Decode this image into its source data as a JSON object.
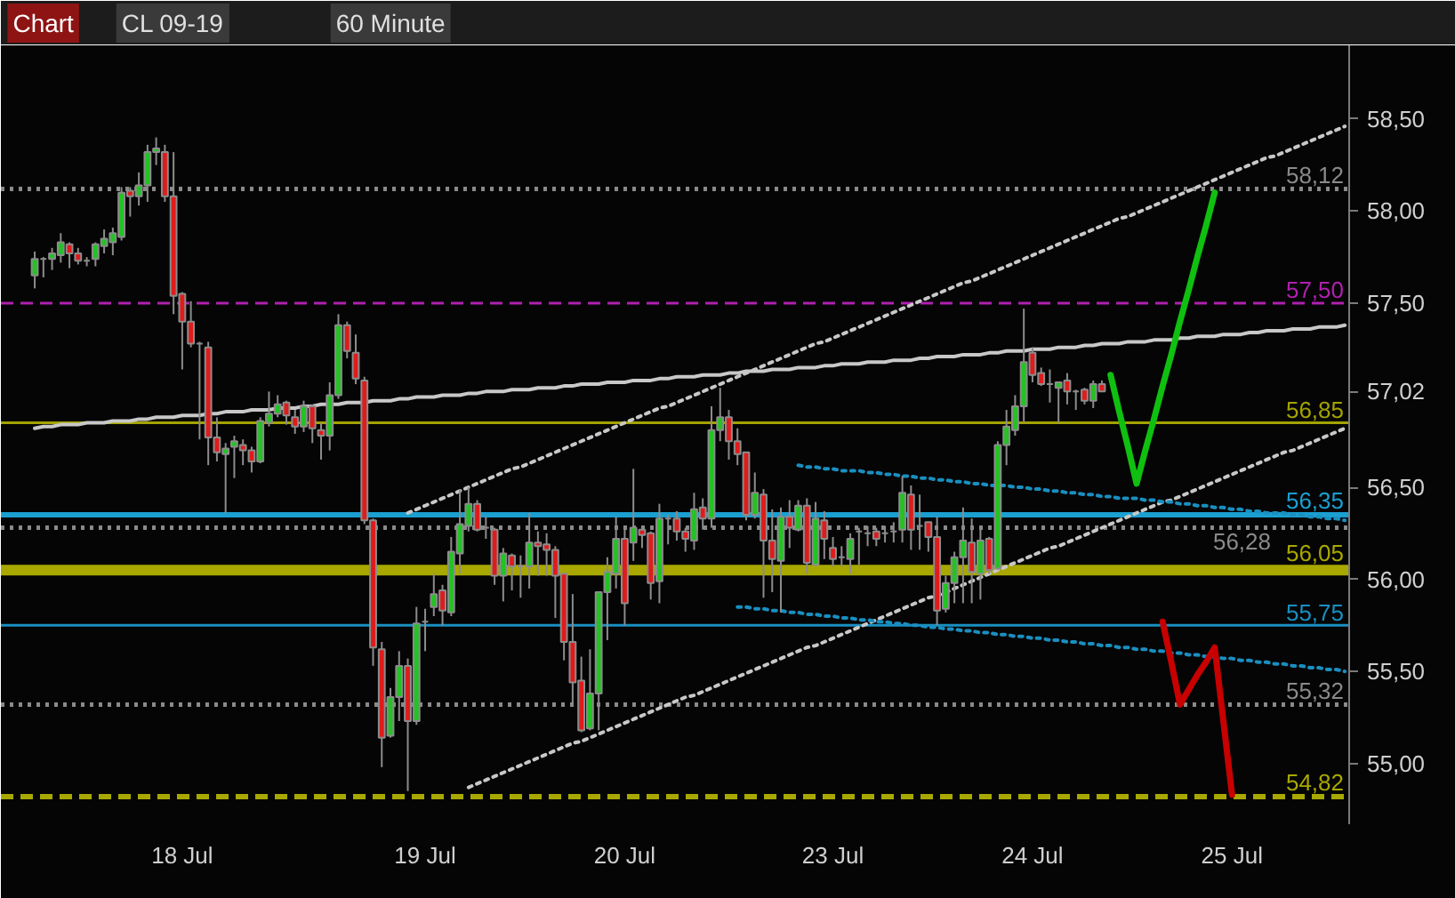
{
  "chart_data": {
    "type": "candlestick",
    "title": "CL 09-19",
    "subtitle": "60 Minute",
    "annotations": [
      "Chart"
    ],
    "categories": [
      null,
      null,
      null,
      null,
      null,
      null,
      null,
      null,
      null,
      null,
      null,
      null,
      null,
      null,
      null,
      null,
      null,
      "18 Jul",
      null,
      null,
      null,
      null,
      null,
      null,
      null,
      null,
      null,
      null,
      null,
      null,
      null,
      null,
      null,
      null,
      null,
      null,
      null,
      null,
      null,
      null,
      null,
      null,
      null,
      null,
      null,
      "19 Jul",
      null,
      null,
      null,
      null,
      null,
      null,
      null,
      null,
      null,
      null,
      null,
      null,
      null,
      null,
      null,
      null,
      null,
      null,
      null,
      null,
      null,
      null,
      "20 Jul",
      null,
      null,
      null,
      null,
      null,
      null,
      null,
      null,
      null,
      null,
      null,
      null,
      null,
      null,
      null,
      null,
      null,
      null,
      null,
      null,
      null,
      null,
      null,
      "23 Jul",
      null,
      null,
      null,
      null,
      null,
      null,
      null,
      null,
      null,
      null,
      null,
      null,
      null,
      null,
      null,
      null,
      null,
      null,
      null,
      null,
      null,
      null,
      "24 Jul",
      null,
      null,
      null,
      null,
      null,
      null,
      null,
      null,
      null,
      null,
      null,
      null,
      null,
      null,
      null,
      null,
      null,
      null,
      null,
      null,
      null,
      null,
      "25 Jul",
      null,
      null,
      null,
      null,
      null,
      null,
      null,
      null,
      null,
      null,
      null,
      null,
      null
    ],
    "ohlc": [
      [
        57.65,
        57.78,
        57.58,
        57.74
      ],
      [
        57.74,
        57.75,
        57.64,
        57.74
      ],
      [
        57.74,
        57.8,
        57.68,
        57.77
      ],
      [
        57.76,
        57.88,
        57.72,
        57.83
      ],
      [
        57.82,
        57.83,
        57.69,
        57.77
      ],
      [
        57.77,
        57.8,
        57.71,
        57.73
      ],
      [
        57.73,
        57.75,
        57.7,
        57.73
      ],
      [
        57.74,
        57.83,
        57.7,
        57.82
      ],
      [
        57.81,
        57.9,
        57.77,
        57.85
      ],
      [
        57.83,
        57.91,
        57.76,
        57.88
      ],
      [
        57.86,
        58.13,
        57.84,
        58.1
      ],
      [
        58.11,
        58.13,
        57.97,
        58.08
      ],
      [
        58.08,
        58.21,
        58.03,
        58.14
      ],
      [
        58.14,
        58.36,
        58.05,
        58.32
      ],
      [
        58.32,
        58.4,
        58.25,
        58.34
      ],
      [
        58.32,
        58.36,
        58.05,
        58.08
      ],
      [
        58.08,
        58.32,
        57.44,
        57.54
      ],
      [
        57.55,
        57.56,
        57.14,
        57.4
      ],
      [
        57.4,
        57.51,
        57.26,
        57.28
      ],
      [
        57.28,
        57.29,
        56.76,
        57.28
      ],
      [
        57.26,
        57.29,
        56.62,
        56.77
      ],
      [
        56.77,
        56.88,
        56.64,
        56.69
      ],
      [
        56.68,
        56.74,
        56.36,
        56.71
      ],
      [
        56.72,
        56.78,
        56.55,
        56.75
      ],
      [
        56.73,
        56.76,
        56.62,
        56.7
      ],
      [
        56.7,
        56.72,
        56.58,
        56.64
      ],
      [
        56.64,
        56.88,
        56.63,
        56.86
      ],
      [
        56.85,
        57.02,
        56.83,
        56.9
      ],
      [
        56.9,
        57.0,
        56.88,
        56.95
      ],
      [
        56.96,
        56.97,
        56.84,
        56.89
      ],
      [
        56.88,
        56.92,
        56.79,
        56.83
      ],
      [
        56.83,
        56.97,
        56.8,
        56.94
      ],
      [
        56.94,
        56.95,
        56.74,
        56.82
      ],
      [
        56.81,
        56.85,
        56.65,
        56.78
      ],
      [
        56.78,
        57.07,
        56.7,
        57.0
      ],
      [
        57.0,
        57.44,
        56.98,
        57.38
      ],
      [
        57.38,
        57.4,
        57.2,
        57.24
      ],
      [
        57.23,
        57.33,
        57.06,
        57.09
      ],
      [
        57.08,
        57.1,
        56.3,
        56.32
      ],
      [
        56.32,
        56.33,
        55.53,
        55.63
      ],
      [
        55.62,
        55.66,
        54.98,
        55.14
      ],
      [
        55.15,
        55.41,
        55.14,
        55.36
      ],
      [
        55.36,
        55.61,
        55.23,
        55.53
      ],
      [
        55.53,
        55.57,
        54.85,
        55.23
      ],
      [
        55.23,
        55.85,
        55.21,
        55.76
      ],
      [
        55.77,
        55.84,
        55.61,
        55.77
      ],
      [
        55.85,
        56.03,
        55.8,
        55.92
      ],
      [
        55.94,
        55.97,
        55.75,
        55.83
      ],
      [
        55.82,
        56.23,
        55.8,
        56.15
      ],
      [
        56.14,
        56.49,
        56.03,
        56.3
      ],
      [
        56.29,
        56.5,
        56.26,
        56.41
      ],
      [
        56.41,
        56.43,
        56.26,
        56.27
      ],
      [
        56.28,
        56.34,
        56.22,
        56.28
      ],
      [
        56.27,
        56.28,
        55.97,
        56.02
      ],
      [
        56.02,
        56.17,
        55.88,
        56.14
      ],
      [
        56.13,
        56.14,
        55.94,
        56.07
      ],
      [
        56.07,
        56.13,
        55.9,
        56.07
      ],
      [
        56.07,
        56.36,
        55.95,
        56.2
      ],
      [
        56.2,
        56.26,
        56.02,
        56.18
      ],
      [
        56.19,
        56.25,
        56.02,
        56.16
      ],
      [
        56.16,
        56.18,
        55.79,
        56.02
      ],
      [
        56.03,
        56.03,
        55.56,
        55.66
      ],
      [
        55.66,
        55.92,
        55.31,
        55.44
      ],
      [
        55.45,
        55.58,
        55.17,
        55.18
      ],
      [
        55.19,
        55.62,
        55.18,
        55.38
      ],
      [
        55.38,
        55.93,
        55.18,
        55.93
      ],
      [
        55.93,
        56.12,
        55.67,
        56.04
      ],
      [
        56.03,
        56.34,
        55.95,
        56.22
      ],
      [
        56.22,
        56.29,
        55.75,
        55.87
      ],
      [
        56.2,
        56.6,
        56.1,
        56.28
      ],
      [
        56.27,
        56.29,
        56.17,
        56.24
      ],
      [
        56.25,
        56.26,
        55.89,
        55.98
      ],
      [
        55.99,
        56.41,
        55.87,
        56.33
      ],
      [
        56.33,
        56.35,
        56.19,
        56.33
      ],
      [
        56.33,
        56.37,
        56.21,
        56.26
      ],
      [
        56.26,
        56.28,
        56.15,
        56.22
      ],
      [
        56.21,
        56.47,
        56.16,
        56.38
      ],
      [
        56.39,
        56.44,
        56.27,
        56.33
      ],
      [
        56.33,
        56.94,
        56.28,
        56.81
      ],
      [
        56.81,
        57.04,
        56.75,
        56.88
      ],
      [
        56.88,
        56.92,
        56.65,
        56.75
      ],
      [
        56.75,
        56.82,
        56.62,
        56.68
      ],
      [
        56.69,
        56.69,
        56.32,
        56.35
      ],
      [
        56.35,
        56.58,
        56.33,
        56.47
      ],
      [
        56.46,
        56.49,
        55.9,
        56.21
      ],
      [
        56.21,
        56.38,
        55.93,
        56.11
      ],
      [
        56.1,
        56.39,
        55.82,
        56.34
      ],
      [
        56.34,
        56.43,
        56.17,
        56.28
      ],
      [
        56.27,
        56.43,
        56.26,
        56.4
      ],
      [
        56.4,
        56.44,
        56.03,
        56.09
      ],
      [
        56.08,
        56.42,
        56.07,
        56.33
      ],
      [
        56.32,
        56.37,
        56.11,
        56.22
      ],
      [
        56.17,
        56.23,
        56.07,
        56.11
      ],
      [
        56.12,
        56.18,
        56.07,
        56.12
      ],
      [
        56.11,
        56.25,
        56.03,
        56.22
      ],
      [
        56.26,
        56.28,
        56.08,
        56.26
      ],
      [
        56.25,
        56.29,
        56.18,
        56.25
      ],
      [
        56.26,
        56.28,
        56.18,
        56.22
      ],
      [
        56.25,
        56.29,
        56.2,
        56.25
      ],
      [
        56.26,
        56.31,
        56.2,
        56.26
      ],
      [
        56.27,
        56.56,
        56.2,
        56.47
      ],
      [
        56.46,
        56.51,
        56.16,
        56.27
      ],
      [
        56.29,
        56.46,
        56.16,
        56.29
      ],
      [
        56.31,
        56.31,
        56.15,
        56.23
      ],
      [
        56.23,
        56.34,
        55.75,
        55.83
      ],
      [
        55.84,
        56.02,
        55.82,
        55.98
      ],
      [
        55.98,
        56.15,
        55.87,
        56.12
      ],
      [
        56.12,
        56.39,
        55.87,
        56.21
      ],
      [
        56.2,
        56.33,
        55.87,
        56.04
      ],
      [
        56.03,
        56.28,
        55.89,
        56.21
      ],
      [
        56.22,
        56.23,
        56.03,
        56.05
      ],
      [
        56.06,
        56.75,
        56.05,
        56.73
      ],
      [
        56.73,
        56.92,
        56.62,
        56.83
      ],
      [
        56.81,
        57.0,
        56.78,
        56.94
      ],
      [
        56.94,
        57.47,
        56.85,
        57.18
      ],
      [
        57.23,
        57.26,
        57.07,
        57.11
      ],
      [
        57.12,
        57.15,
        57.05,
        57.06
      ],
      [
        57.06,
        57.14,
        56.96,
        57.06
      ],
      [
        57.04,
        57.07,
        56.85,
        57.07
      ],
      [
        57.08,
        57.12,
        56.95,
        57.02
      ],
      [
        57.02,
        57.03,
        56.92,
        57.02
      ],
      [
        57.03,
        57.04,
        56.95,
        56.97
      ],
      [
        56.97,
        57.08,
        56.93,
        57.06
      ],
      [
        57.06,
        57.08,
        57.02,
        57.02
      ],
      null,
      null,
      null,
      null,
      null,
      null,
      null,
      null,
      null,
      null,
      null,
      null,
      null,
      null,
      null,
      null,
      null,
      null,
      null,
      null,
      null,
      null,
      null,
      null,
      null,
      null,
      null,
      null
    ],
    "colors": [
      "#22c322",
      "#9a9a9a",
      "#22c322",
      "#22c322",
      "#e01b1b",
      "#e01b1b",
      "#9a9a9a",
      "#22c322",
      "#22c322",
      "#22c322",
      "#22c322",
      "#e01b1b",
      "#22c322",
      "#22c322",
      "#22c322",
      "#e01b1b",
      "#e01b1b",
      "#e01b1b",
      "#e01b1b",
      "#9a9a9a",
      "#e01b1b",
      "#e01b1b",
      "#22c322",
      "#22c322",
      "#e01b1b",
      "#e01b1b",
      "#22c322",
      "#22c322",
      "#22c322",
      "#e01b1b",
      "#e01b1b",
      "#22c322",
      "#e01b1b",
      "#e01b1b",
      "#22c322",
      "#22c322",
      "#e01b1b",
      "#e01b1b",
      "#e01b1b",
      "#e01b1b",
      "#e01b1b",
      "#22c322",
      "#22c322",
      "#e01b1b",
      "#22c322",
      "#9a9a9a",
      "#22c322",
      "#e01b1b",
      "#22c322",
      "#22c322",
      "#22c322",
      "#e01b1b",
      "#9a9a9a",
      "#e01b1b",
      "#22c322",
      "#e01b1b",
      "#9a9a9a",
      "#22c322",
      "#e01b1b",
      "#e01b1b",
      "#e01b1b",
      "#e01b1b",
      "#e01b1b",
      "#e01b1b",
      "#22c322",
      "#22c322",
      "#22c322",
      "#22c322",
      "#e01b1b",
      "#22c322",
      "#e01b1b",
      "#e01b1b",
      "#22c322",
      "#9a9a9a",
      "#e01b1b",
      "#e01b1b",
      "#22c322",
      "#e01b1b",
      "#22c322",
      "#22c322",
      "#e01b1b",
      "#e01b1b",
      "#e01b1b",
      "#22c322",
      "#e01b1b",
      "#e01b1b",
      "#22c322",
      "#e01b1b",
      "#22c322",
      "#e01b1b",
      "#22c322",
      "#e01b1b",
      "#e01b1b",
      "#9a9a9a",
      "#22c322",
      "#9a9a9a",
      "#9a9a9a",
      "#e01b1b",
      "#9a9a9a",
      "#9a9a9a",
      "#22c322",
      "#e01b1b",
      "#9a9a9a",
      "#e01b1b",
      "#e01b1b",
      "#22c322",
      "#22c322",
      "#22c322",
      "#e01b1b",
      "#22c322",
      "#e01b1b",
      "#22c322",
      "#22c322",
      "#22c322",
      "#22c322",
      "#e01b1b",
      "#e01b1b",
      "#9a9a9a",
      "#22c322",
      "#e01b1b",
      "#9a9a9a",
      "#e01b1b",
      "#22c322",
      "#e01b1b",
      null,
      null,
      null,
      null,
      null,
      null,
      null,
      null,
      null,
      null,
      null,
      null,
      null,
      null,
      null,
      null,
      null,
      null,
      null,
      null,
      null,
      null,
      null,
      null,
      null,
      null,
      null,
      null
    ],
    "ylim": [
      54.67,
      58.9
    ],
    "yticks": [
      {
        "value": 55,
        "label": "55,00"
      },
      {
        "value": 55.5,
        "label": "55,50"
      },
      {
        "value": 56,
        "label": "56,00"
      },
      {
        "value": 56.5,
        "label": "56,50"
      },
      {
        "value": 57.02,
        "label": "57,02"
      },
      {
        "value": 57.5,
        "label": "57,50"
      },
      {
        "value": 58,
        "label": "58,00"
      },
      {
        "value": 58.5,
        "label": "58,50"
      }
    ],
    "grid": false,
    "ref_lines": [
      {
        "axis": "y",
        "value": 58.12,
        "label": "58,12",
        "color": "#8a8a8a",
        "line_style": "dotted"
      },
      {
        "axis": "y",
        "value": 57.5,
        "label": "57,50",
        "color": "#b020b0",
        "line_style": "dashed"
      },
      {
        "axis": "y",
        "value": 56.85,
        "label": "56,85",
        "color": "#a3a300",
        "line_style": "solid"
      },
      {
        "axis": "y",
        "value": 56.35,
        "label": "56,35",
        "color": "#1a9fd0",
        "line_style": "solid"
      },
      {
        "axis": "y",
        "value": 56.28,
        "label": "56,28",
        "color": "#8a8a8a",
        "line_style": "dotted"
      },
      {
        "axis": "y",
        "value": 56.05,
        "label": "56,05",
        "color": "#a8a800",
        "line_style": "solid"
      },
      {
        "axis": "y",
        "value": 55.75,
        "label": "55,75",
        "color": "#1a8fc0",
        "line_style": "solid"
      },
      {
        "axis": "y",
        "value": 55.32,
        "label": "55,32",
        "color": "#8a8a8a",
        "line_style": "dotted"
      },
      {
        "axis": "y",
        "value": 54.82,
        "label": "54,82",
        "color": "#a8a800",
        "line_style": "dashed"
      }
    ],
    "series": [
      {
        "type": "line",
        "color": "#c8c8c8",
        "line_style": "dotted",
        "values": [
          null,
          null,
          null,
          null,
          null,
          null,
          null,
          null,
          null,
          null,
          null,
          null,
          null,
          null,
          null,
          null,
          null,
          null,
          null,
          null,
          null,
          null,
          null,
          null,
          null,
          null,
          null,
          null,
          null,
          null,
          null,
          null,
          null,
          null,
          null,
          null,
          null,
          null,
          null,
          null,
          null,
          null,
          null,
          56.36,
          56.38,
          56.4,
          56.42,
          56.44,
          56.46,
          56.48,
          56.5,
          56.52,
          56.54,
          56.56,
          56.58,
          56.6,
          56.61,
          56.63,
          56.65,
          56.67,
          56.69,
          56.71,
          56.73,
          56.75,
          56.77,
          56.79,
          56.81,
          56.83,
          56.85,
          56.87,
          56.89,
          56.91,
          56.93,
          56.94,
          56.96,
          56.98,
          57.0,
          57.02,
          57.04,
          57.06,
          57.08,
          57.1,
          57.12,
          57.14,
          57.16,
          57.18,
          57.2,
          57.22,
          57.24,
          57.26,
          57.28,
          57.29,
          57.31,
          57.33,
          57.35,
          57.37,
          57.39,
          57.41,
          57.43,
          57.45,
          57.47,
          57.49,
          57.51,
          57.53,
          57.55,
          57.57,
          57.59,
          57.61,
          57.62,
          57.64,
          57.66,
          57.68,
          57.7,
          57.72,
          57.74,
          57.76,
          57.78,
          57.8,
          57.82,
          57.84,
          57.86,
          57.88,
          57.9,
          57.92,
          57.94,
          57.96,
          57.97,
          57.99,
          58.01,
          58.03,
          58.05,
          58.07,
          58.09,
          58.11,
          58.13,
          58.15,
          58.17,
          58.19,
          58.21,
          58.23,
          58.25,
          58.27,
          58.29,
          58.3,
          58.32,
          58.34,
          58.36,
          58.38,
          58.4,
          58.42,
          58.44,
          58.46
        ]
      },
      {
        "type": "line",
        "color": "#c8c8c8",
        "line_style": "dotted",
        "values": [
          null,
          null,
          null,
          null,
          null,
          null,
          null,
          null,
          null,
          null,
          null,
          null,
          null,
          null,
          null,
          null,
          null,
          null,
          null,
          null,
          null,
          null,
          null,
          null,
          null,
          null,
          null,
          null,
          null,
          null,
          null,
          null,
          null,
          null,
          null,
          null,
          null,
          null,
          null,
          null,
          null,
          null,
          null,
          null,
          null,
          null,
          null,
          null,
          null,
          null,
          54.87,
          54.89,
          54.91,
          54.93,
          54.95,
          54.97,
          54.99,
          55.01,
          55.03,
          55.05,
          55.07,
          55.09,
          55.11,
          55.12,
          55.14,
          55.16,
          55.18,
          55.2,
          55.22,
          55.24,
          55.26,
          55.28,
          55.3,
          55.32,
          55.34,
          55.36,
          55.37,
          55.39,
          55.41,
          55.43,
          55.45,
          55.47,
          55.49,
          55.51,
          55.53,
          55.55,
          55.57,
          55.59,
          55.61,
          55.63,
          55.64,
          55.66,
          55.68,
          55.7,
          55.72,
          55.74,
          55.76,
          55.78,
          55.8,
          55.82,
          55.84,
          55.86,
          55.88,
          55.9,
          55.91,
          55.93,
          55.95,
          55.97,
          55.99,
          56.01,
          56.03,
          56.05,
          56.07,
          56.09,
          56.11,
          56.13,
          56.15,
          56.17,
          56.18,
          56.2,
          56.22,
          56.24,
          56.26,
          56.28,
          56.3,
          56.32,
          56.34,
          56.36,
          56.38,
          56.4,
          56.42,
          56.43,
          56.45,
          56.47,
          56.49,
          56.51,
          56.53,
          56.55,
          56.57,
          56.59,
          56.61,
          56.63,
          56.65,
          56.67,
          56.69,
          56.7,
          56.72,
          56.74,
          56.76,
          56.78,
          56.8,
          56.82
        ]
      },
      {
        "type": "line",
        "color": "#c8c8c8",
        "line_style": "solid",
        "values": [
          56.82,
          56.83,
          56.83,
          56.84,
          56.84,
          56.84,
          56.85,
          56.85,
          56.85,
          56.86,
          56.86,
          56.86,
          56.87,
          56.87,
          56.88,
          56.88,
          56.88,
          56.89,
          56.89,
          56.89,
          56.9,
          56.9,
          56.91,
          56.91,
          56.91,
          56.92,
          56.92,
          56.92,
          56.93,
          56.93,
          56.93,
          56.94,
          56.94,
          56.95,
          56.95,
          56.95,
          56.96,
          56.96,
          56.96,
          56.97,
          56.97,
          56.97,
          56.98,
          56.98,
          56.99,
          56.99,
          56.99,
          57.0,
          57.0,
          57.0,
          57.01,
          57.01,
          57.02,
          57.02,
          57.02,
          57.03,
          57.03,
          57.03,
          57.04,
          57.04,
          57.04,
          57.05,
          57.05,
          57.06,
          57.06,
          57.06,
          57.07,
          57.07,
          57.07,
          57.08,
          57.08,
          57.08,
          57.09,
          57.09,
          57.1,
          57.1,
          57.1,
          57.11,
          57.11,
          57.11,
          57.12,
          57.12,
          57.13,
          57.13,
          57.13,
          57.14,
          57.14,
          57.14,
          57.15,
          57.15,
          57.15,
          57.16,
          57.16,
          57.17,
          57.17,
          57.17,
          57.18,
          57.18,
          57.18,
          57.19,
          57.19,
          57.19,
          57.2,
          57.2,
          57.21,
          57.21,
          57.21,
          57.22,
          57.22,
          57.22,
          57.23,
          57.23,
          57.24,
          57.24,
          57.24,
          57.25,
          57.25,
          57.25,
          57.26,
          57.26,
          57.26,
          57.27,
          57.27,
          57.28,
          57.28,
          57.28,
          57.29,
          57.29,
          57.29,
          57.3,
          57.3,
          57.3,
          57.31,
          57.31,
          57.32,
          57.32,
          57.32,
          57.33,
          57.33,
          57.33,
          57.34,
          57.34,
          57.35,
          57.35,
          57.35,
          57.36,
          57.36,
          57.36,
          57.37,
          57.37,
          57.37,
          57.38
        ]
      },
      {
        "type": "line",
        "color": "#1a8fc0",
        "line_style": "dotted",
        "values": [
          null,
          null,
          null,
          null,
          null,
          null,
          null,
          null,
          null,
          null,
          null,
          null,
          null,
          null,
          null,
          null,
          null,
          null,
          null,
          null,
          null,
          null,
          null,
          null,
          null,
          null,
          null,
          null,
          null,
          null,
          null,
          null,
          null,
          null,
          null,
          null,
          null,
          null,
          null,
          null,
          null,
          null,
          null,
          null,
          null,
          null,
          null,
          null,
          null,
          null,
          null,
          null,
          null,
          null,
          null,
          null,
          null,
          null,
          null,
          null,
          null,
          null,
          null,
          null,
          null,
          null,
          null,
          null,
          null,
          null,
          null,
          null,
          null,
          null,
          null,
          null,
          null,
          null,
          null,
          null,
          null,
          null,
          null,
          null,
          null,
          null,
          null,
          null,
          56.62,
          56.61,
          56.61,
          56.6,
          56.6,
          56.59,
          56.59,
          56.59,
          56.58,
          56.58,
          56.57,
          56.57,
          56.56,
          56.56,
          56.55,
          56.55,
          56.54,
          56.54,
          56.53,
          56.53,
          56.52,
          56.52,
          56.51,
          56.51,
          56.51,
          56.5,
          56.5,
          56.49,
          56.49,
          56.48,
          56.48,
          56.47,
          56.47,
          56.46,
          56.46,
          56.45,
          56.45,
          56.44,
          56.44,
          56.44,
          56.43,
          56.43,
          56.42,
          56.42,
          56.41,
          56.41,
          56.4,
          56.4,
          56.39,
          56.39,
          56.38,
          56.38,
          56.37,
          56.37,
          56.36,
          56.36,
          56.36,
          56.35,
          56.35,
          56.34,
          56.34,
          56.33,
          56.33,
          56.32
        ]
      },
      {
        "type": "line",
        "color": "#1a8fc0",
        "line_style": "dotted",
        "values": [
          null,
          null,
          null,
          null,
          null,
          null,
          null,
          null,
          null,
          null,
          null,
          null,
          null,
          null,
          null,
          null,
          null,
          null,
          null,
          null,
          null,
          null,
          null,
          null,
          null,
          null,
          null,
          null,
          null,
          null,
          null,
          null,
          null,
          null,
          null,
          null,
          null,
          null,
          null,
          null,
          null,
          null,
          null,
          null,
          null,
          null,
          null,
          null,
          null,
          null,
          null,
          null,
          null,
          null,
          null,
          null,
          null,
          null,
          null,
          null,
          null,
          null,
          null,
          null,
          null,
          null,
          null,
          null,
          null,
          null,
          null,
          null,
          null,
          null,
          null,
          null,
          null,
          null,
          null,
          null,
          null,
          55.85,
          55.85,
          55.84,
          55.84,
          55.83,
          55.83,
          55.82,
          55.82,
          55.81,
          55.81,
          55.8,
          55.8,
          55.79,
          55.79,
          55.78,
          55.78,
          55.77,
          55.77,
          55.76,
          55.76,
          55.75,
          55.75,
          55.74,
          55.74,
          55.73,
          55.73,
          55.72,
          55.72,
          55.71,
          55.71,
          55.7,
          55.7,
          55.69,
          55.69,
          55.68,
          55.68,
          55.67,
          55.67,
          55.66,
          55.66,
          55.65,
          55.65,
          55.64,
          55.64,
          55.63,
          55.63,
          55.62,
          55.62,
          55.61,
          55.61,
          55.6,
          55.6,
          55.59,
          55.59,
          55.58,
          55.58,
          55.57,
          55.57,
          55.56,
          55.56,
          55.55,
          55.55,
          55.54,
          55.54,
          55.53,
          55.53,
          55.52,
          55.52,
          55.51,
          55.51,
          55.5
        ]
      },
      {
        "type": "line",
        "color": "#10c010",
        "line_style": "solid",
        "values": [
          null,
          null,
          null,
          null,
          null,
          null,
          null,
          null,
          null,
          null,
          null,
          null,
          null,
          null,
          null,
          null,
          null,
          null,
          null,
          null,
          null,
          null,
          null,
          null,
          null,
          null,
          null,
          null,
          null,
          null,
          null,
          null,
          null,
          null,
          null,
          null,
          null,
          null,
          null,
          null,
          null,
          null,
          null,
          null,
          null,
          null,
          null,
          null,
          null,
          null,
          null,
          null,
          null,
          null,
          null,
          null,
          null,
          null,
          null,
          null,
          null,
          null,
          null,
          null,
          null,
          null,
          null,
          null,
          null,
          null,
          null,
          null,
          null,
          null,
          null,
          null,
          null,
          null,
          null,
          null,
          null,
          null,
          null,
          null,
          null,
          null,
          null,
          null,
          null,
          null,
          null,
          null,
          null,
          null,
          null,
          null,
          null,
          null,
          null,
          null,
          null,
          null,
          null,
          null,
          null,
          null,
          null,
          null,
          null,
          null,
          null,
          null,
          null,
          null,
          null,
          null,
          null,
          null,
          null,
          null,
          null,
          null,
          null,
          null,
          57.11,
          56.91,
          56.72,
          56.52,
          56.7,
          56.87,
          57.05,
          57.22,
          57.4,
          57.57,
          57.75,
          57.92,
          58.1,
          null,
          null,
          null,
          null,
          null,
          null,
          null,
          null,
          null,
          null,
          null,
          null,
          null,
          null,
          null
        ]
      },
      {
        "type": "line",
        "color": "#c80000",
        "line_style": "solid",
        "values": [
          null,
          null,
          null,
          null,
          null,
          null,
          null,
          null,
          null,
          null,
          null,
          null,
          null,
          null,
          null,
          null,
          null,
          null,
          null,
          null,
          null,
          null,
          null,
          null,
          null,
          null,
          null,
          null,
          null,
          null,
          null,
          null,
          null,
          null,
          null,
          null,
          null,
          null,
          null,
          null,
          null,
          null,
          null,
          null,
          null,
          null,
          null,
          null,
          null,
          null,
          null,
          null,
          null,
          null,
          null,
          null,
          null,
          null,
          null,
          null,
          null,
          null,
          null,
          null,
          null,
          null,
          null,
          null,
          null,
          null,
          null,
          null,
          null,
          null,
          null,
          null,
          null,
          null,
          null,
          null,
          null,
          null,
          null,
          null,
          null,
          null,
          null,
          null,
          null,
          null,
          null,
          null,
          null,
          null,
          null,
          null,
          null,
          null,
          null,
          null,
          null,
          null,
          null,
          null,
          null,
          null,
          null,
          null,
          null,
          null,
          null,
          null,
          null,
          null,
          null,
          null,
          null,
          null,
          null,
          null,
          null,
          null,
          null,
          null,
          null,
          null,
          null,
          null,
          null,
          null,
          55.77,
          55.55,
          55.32,
          55.4,
          55.48,
          55.55,
          55.63,
          55.23,
          54.83,
          null,
          null,
          null,
          null,
          null,
          null,
          null,
          null,
          null,
          null,
          null,
          null,
          null
        ]
      }
    ]
  }
}
